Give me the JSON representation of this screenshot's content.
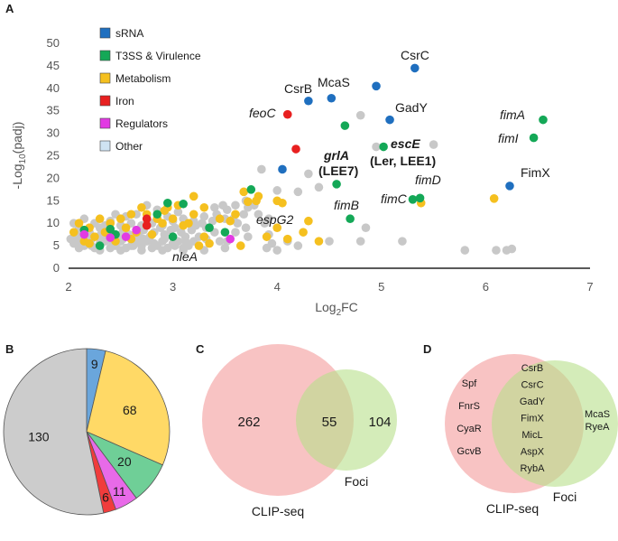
{
  "panels": {
    "a": "A",
    "b": "B",
    "c": "C",
    "d": "D"
  },
  "chart_data": [
    {
      "id": "volcano",
      "type": "scatter",
      "title": "",
      "xlabel_main": "Log",
      "xlabel_sub": "2",
      "xlabel_end": "FC",
      "ylabel_pre": "-Log",
      "ylabel_sub": "10",
      "ylabel_end": "(padj)",
      "xlim": [
        2,
        7
      ],
      "ylim": [
        0,
        50
      ],
      "xticks": [
        "2",
        "3",
        "4",
        "5",
        "6",
        "7"
      ],
      "yticks": [
        "0",
        "5",
        "10",
        "15",
        "20",
        "25",
        "30",
        "35",
        "40",
        "45",
        "50"
      ],
      "legend": [
        {
          "label": "sRNA",
          "color": "#1f6fbf"
        },
        {
          "label": "T3SS & Virulence",
          "color": "#14a857"
        },
        {
          "label": "Metabolism",
          "color": "#f5c01f"
        },
        {
          "label": "Iron",
          "color": "#e82020"
        },
        {
          "label": "Regulators",
          "color": "#e23ae3"
        },
        {
          "label": "Other",
          "color": "#cfe3f2"
        }
      ],
      "series": [
        {
          "name": "sRNA",
          "color": "#1f6fbf",
          "points": [
            [
              5.32,
              44.5
            ],
            [
              4.95,
              40.5
            ],
            [
              4.52,
              37.8
            ],
            [
              4.3,
              37.2
            ],
            [
              5.08,
              33
            ],
            [
              4.05,
              22
            ],
            [
              6.23,
              18.3
            ]
          ]
        },
        {
          "name": "T3SS & Virulence",
          "color": "#14a857",
          "points": [
            [
              6.55,
              33
            ],
            [
              6.46,
              29
            ],
            [
              4.65,
              31.7
            ],
            [
              5.02,
              27
            ],
            [
              4.57,
              18.7
            ],
            [
              4.7,
              11
            ],
            [
              5.3,
              15.3
            ],
            [
              5.37,
              15.6
            ],
            [
              3.75,
              17.5
            ],
            [
              3.5,
              8
            ],
            [
              3.35,
              9
            ],
            [
              3.1,
              14.3
            ],
            [
              2.95,
              14.5
            ],
            [
              2.85,
              12
            ],
            [
              2.3,
              5
            ],
            [
              2.45,
              7.5
            ],
            [
              3.0,
              7
            ],
            [
              2.15,
              8.5
            ],
            [
              2.4,
              8.7
            ]
          ]
        },
        {
          "name": "Metabolism",
          "color": "#f5c01f",
          "points": [
            [
              6.08,
              15.5
            ],
            [
              5.38,
              14.5
            ],
            [
              4.0,
              15
            ],
            [
              4.05,
              14.5
            ],
            [
              3.8,
              15
            ],
            [
              3.68,
              17
            ],
            [
              3.72,
              14.8
            ],
            [
              3.82,
              16
            ],
            [
              3.3,
              13.5
            ],
            [
              3.45,
              11
            ],
            [
              3.55,
              10.5
            ],
            [
              3.2,
              12
            ],
            [
              3.15,
              10
            ],
            [
              3.0,
              11
            ],
            [
              2.95,
              13.5
            ],
            [
              3.05,
              14
            ],
            [
              2.9,
              10
            ],
            [
              2.85,
              11
            ],
            [
              2.75,
              12
            ],
            [
              2.7,
              13.5
            ],
            [
              2.6,
              12
            ],
            [
              2.5,
              11
            ],
            [
              2.4,
              10
            ],
            [
              2.3,
              11
            ],
            [
              2.2,
              9
            ],
            [
              2.1,
              10
            ],
            [
              2.05,
              8
            ],
            [
              2.15,
              6
            ],
            [
              2.25,
              7
            ],
            [
              2.35,
              8
            ],
            [
              2.55,
              9
            ],
            [
              2.65,
              8
            ],
            [
              2.45,
              6
            ],
            [
              2.6,
              6.5
            ],
            [
              3.35,
              5.5
            ],
            [
              3.65,
              5
            ],
            [
              4.1,
              6.5
            ],
            [
              4.25,
              8
            ],
            [
              4.0,
              9
            ],
            [
              3.9,
              7
            ],
            [
              3.3,
              7
            ],
            [
              2.2,
              5.5
            ],
            [
              2.8,
              7.5
            ],
            [
              3.25,
              5
            ],
            [
              4.4,
              6
            ],
            [
              3.2,
              16
            ],
            [
              3.1,
              9.5
            ],
            [
              2.92,
              12.8
            ],
            [
              3.6,
              12
            ],
            [
              4.3,
              10.5
            ]
          ]
        },
        {
          "name": "Iron",
          "color": "#e82020",
          "points": [
            [
              4.1,
              34.2
            ],
            [
              4.18,
              26.5
            ],
            [
              2.75,
              11
            ],
            [
              2.75,
              9.5
            ]
          ]
        },
        {
          "name": "Regulators",
          "color": "#e23ae3",
          "points": [
            [
              2.15,
              7.5
            ],
            [
              2.4,
              6.8
            ],
            [
              2.55,
              7
            ],
            [
              3.55,
              6.5
            ],
            [
              2.65,
              8.5
            ]
          ]
        },
        {
          "name": "Other",
          "color": "#c8c8c8",
          "points": [
            [
              4.8,
              34
            ],
            [
              5.5,
              27.5
            ],
            [
              4.95,
              27
            ],
            [
              4.3,
              21
            ],
            [
              3.85,
              22
            ],
            [
              4.4,
              18
            ],
            [
              4.2,
              17
            ],
            [
              4.0,
              17.3
            ],
            [
              5.2,
              6
            ],
            [
              5.8,
              4
            ],
            [
              6.1,
              4
            ],
            [
              6.2,
              4
            ],
            [
              6.25,
              4.3
            ],
            [
              4.85,
              9
            ],
            [
              4.8,
              6
            ],
            [
              4.5,
              6
            ],
            [
              3.9,
              4.5
            ],
            [
              3.95,
              5.5
            ],
            [
              4.1,
              6
            ],
            [
              4.2,
              5
            ],
            [
              4.0,
              4
            ],
            [
              3.7,
              9
            ],
            [
              3.6,
              8
            ],
            [
              3.45,
              6
            ],
            [
              3.5,
              4.5
            ],
            [
              3.4,
              8
            ],
            [
              3.25,
              7
            ],
            [
              3.2,
              6
            ],
            [
              3.15,
              5
            ],
            [
              3.1,
              4.5
            ],
            [
              3.05,
              6
            ],
            [
              3.0,
              5.5
            ],
            [
              2.95,
              4.5
            ],
            [
              2.9,
              6
            ],
            [
              2.85,
              5
            ],
            [
              2.8,
              4.5
            ],
            [
              2.75,
              6
            ],
            [
              2.7,
              5
            ],
            [
              2.65,
              6
            ],
            [
              2.6,
              5
            ],
            [
              2.55,
              4.5
            ],
            [
              2.5,
              6
            ],
            [
              2.45,
              5
            ],
            [
              2.4,
              4.5
            ],
            [
              2.35,
              6
            ],
            [
              2.3,
              5.5
            ],
            [
              2.25,
              4.5
            ],
            [
              2.2,
              6
            ],
            [
              2.15,
              5
            ],
            [
              2.1,
              4.5
            ],
            [
              2.05,
              5.5
            ],
            [
              2.02,
              6.5
            ],
            [
              2.08,
              7
            ],
            [
              2.12,
              8
            ],
            [
              2.18,
              7.5
            ],
            [
              2.22,
              6.5
            ],
            [
              2.28,
              7
            ],
            [
              2.32,
              8
            ],
            [
              2.38,
              7.5
            ],
            [
              2.42,
              6
            ],
            [
              2.48,
              7
            ],
            [
              2.52,
              8
            ],
            [
              2.58,
              7.5
            ],
            [
              2.62,
              6.5
            ],
            [
              2.68,
              7
            ],
            [
              2.72,
              8.5
            ],
            [
              2.78,
              7
            ],
            [
              2.82,
              8
            ],
            [
              2.88,
              9
            ],
            [
              2.92,
              7.5
            ],
            [
              2.98,
              8.5
            ],
            [
              3.02,
              9
            ],
            [
              3.08,
              8
            ],
            [
              3.12,
              7
            ],
            [
              3.18,
              8.5
            ],
            [
              3.22,
              9.5
            ],
            [
              3.28,
              10
            ],
            [
              3.32,
              9
            ],
            [
              3.38,
              10.5
            ],
            [
              3.42,
              12
            ],
            [
              3.48,
              14
            ],
            [
              3.52,
              13
            ],
            [
              3.58,
              11
            ],
            [
              3.62,
              10
            ],
            [
              3.68,
              12
            ],
            [
              3.72,
              13.5
            ],
            [
              3.78,
              14
            ],
            [
              3.82,
              12
            ],
            [
              3.88,
              10
            ],
            [
              3.92,
              11
            ],
            [
              2.55,
              11.5
            ],
            [
              2.65,
              12
            ],
            [
              2.45,
              12
            ],
            [
              2.75,
              14
            ],
            [
              2.85,
              13
            ],
            [
              2.95,
              11.5
            ],
            [
              3.05,
              12.5
            ],
            [
              2.6,
              10
            ],
            [
              2.5,
              9.5
            ],
            [
              2.35,
              9.5
            ],
            [
              2.25,
              10
            ],
            [
              2.15,
              11
            ],
            [
              2.05,
              10
            ],
            [
              2.1,
              9
            ],
            [
              2.2,
              8
            ],
            [
              2.3,
              9
            ],
            [
              2.4,
              10.5
            ],
            [
              2.7,
              9.5
            ],
            [
              2.8,
              10
            ],
            [
              2.9,
              9.5
            ],
            [
              3.0,
              10.5
            ],
            [
              3.1,
              11
            ],
            [
              3.2,
              10.5
            ],
            [
              3.3,
              11.5
            ],
            [
              3.4,
              13.5
            ],
            [
              3.5,
              11
            ],
            [
              3.6,
              14
            ],
            [
              3.7,
              15
            ],
            [
              2.3,
              4
            ],
            [
              2.5,
              4
            ],
            [
              2.7,
              4
            ],
            [
              2.9,
              4
            ],
            [
              3.1,
              4
            ],
            [
              3.3,
              4
            ],
            [
              2.22,
              5
            ],
            [
              2.42,
              5
            ],
            [
              2.62,
              5
            ],
            [
              2.82,
              5.5
            ],
            [
              3.02,
              5
            ],
            [
              2.12,
              6
            ],
            [
              2.32,
              6.5
            ],
            [
              2.52,
              6.5
            ],
            [
              2.72,
              6.5
            ],
            [
              2.92,
              6.5
            ],
            [
              3.12,
              6
            ],
            [
              3.32,
              6.5
            ],
            [
              3.52,
              6
            ],
            [
              3.72,
              7
            ],
            [
              3.92,
              7.5
            ]
          ]
        }
      ],
      "annotations": [
        {
          "text": "CsrC",
          "style": "normal"
        },
        {
          "text": "CsrB",
          "style": "normal"
        },
        {
          "text": "McaS",
          "style": "normal"
        },
        {
          "text": "GadY",
          "style": "normal"
        },
        {
          "text": "feoC",
          "style": "italic"
        },
        {
          "text": "grlA",
          "style": "bold-italic"
        },
        {
          "text": "(LEE7)",
          "style": "bold"
        },
        {
          "text": "escE",
          "style": "bold-italic"
        },
        {
          "text": "(Ler, LEE1)",
          "style": "bold"
        },
        {
          "text": "fimA",
          "style": "italic"
        },
        {
          "text": "fimI",
          "style": "italic"
        },
        {
          "text": "FimX",
          "style": "normal"
        },
        {
          "text": "fimD",
          "style": "italic"
        },
        {
          "text": "fimC",
          "style": "italic"
        },
        {
          "text": "fimB",
          "style": "italic"
        },
        {
          "text": "espG2",
          "style": "italic"
        },
        {
          "text": "nleA",
          "style": "italic"
        }
      ]
    },
    {
      "id": "pie",
      "type": "pie",
      "values": [
        9,
        68,
        20,
        11,
        6,
        130
      ],
      "labels": [
        "9",
        "68",
        "20",
        "11",
        "6",
        "130"
      ],
      "colors": [
        "#6aa6dc",
        "#ffd966",
        "#6fcf97",
        "#e86ae8",
        "#f03c3c",
        "#cccccc"
      ]
    },
    {
      "id": "venn-c",
      "type": "venn",
      "sets": [
        {
          "name": "CLIP-seq",
          "only": "262"
        },
        {
          "name": "Foci",
          "only": "104"
        }
      ],
      "intersection": "55"
    },
    {
      "id": "venn-d",
      "type": "venn",
      "sets": [
        {
          "name": "CLIP-seq",
          "only_items": [
            "Spf",
            "FnrS",
            "CyaR",
            "GcvB"
          ]
        },
        {
          "name": "Foci",
          "only_items": [
            "McaS",
            "RyeA"
          ]
        }
      ],
      "intersection_items": [
        "CsrB",
        "CsrC",
        "GadY",
        "FimX",
        "MicL",
        "AspX",
        "RybA"
      ]
    }
  ]
}
